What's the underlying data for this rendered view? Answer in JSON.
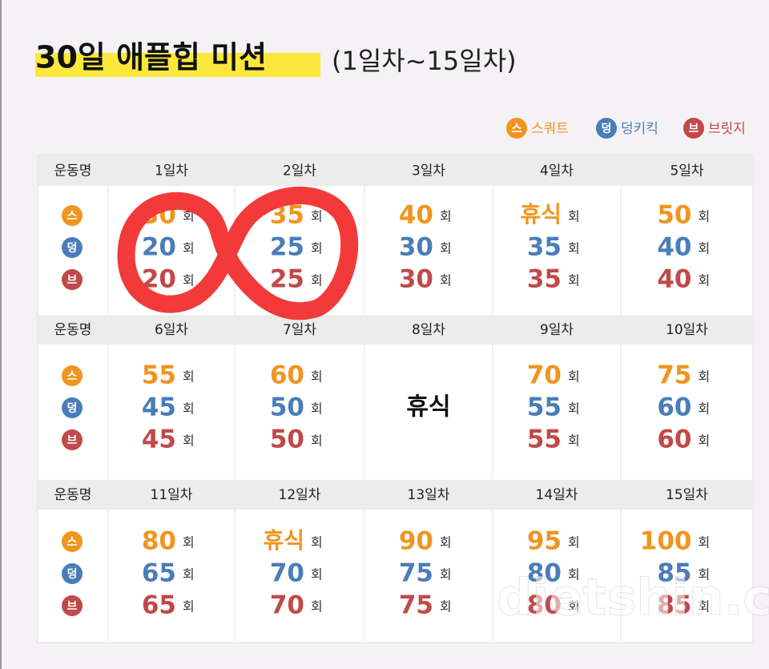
{
  "header": {
    "title": "30일 애플힙 미션",
    "subtitle": "(1일차~15일차)"
  },
  "legend": [
    {
      "icon": "스",
      "label": "스쿼트",
      "color": "#f0951e"
    },
    {
      "icon": "덩",
      "label": "덩키킥",
      "color": "#4a7db8"
    },
    {
      "icon": "브",
      "label": "브릿지",
      "color": "#c1494a"
    }
  ],
  "table": {
    "row_header": "운동명",
    "unit": "회",
    "rest": "휴식",
    "blocks": [
      {
        "days": [
          "1일차",
          "2일차",
          "3일차",
          "4일차",
          "5일차"
        ],
        "counts": [
          [
            30,
            20,
            20
          ],
          [
            35,
            25,
            25
          ],
          [
            40,
            30,
            30
          ],
          [
            null,
            35,
            35
          ],
          [
            50,
            40,
            40
          ]
        ]
      },
      {
        "days": [
          "6일차",
          "7일차",
          "8일차",
          "9일차",
          "10일차"
        ],
        "counts": [
          [
            55,
            45,
            45
          ],
          [
            60,
            50,
            50
          ],
          null,
          [
            70,
            55,
            55
          ],
          [
            75,
            60,
            60
          ]
        ]
      },
      {
        "days": [
          "11일차",
          "12일차",
          "13일차",
          "14일차",
          "15일차"
        ],
        "counts": [
          [
            80,
            65,
            65
          ],
          [
            null,
            70,
            70
          ],
          [
            90,
            75,
            75
          ],
          [
            95,
            80,
            80
          ],
          [
            100,
            85,
            85
          ]
        ]
      }
    ]
  },
  "watermark": "dietshin.com"
}
